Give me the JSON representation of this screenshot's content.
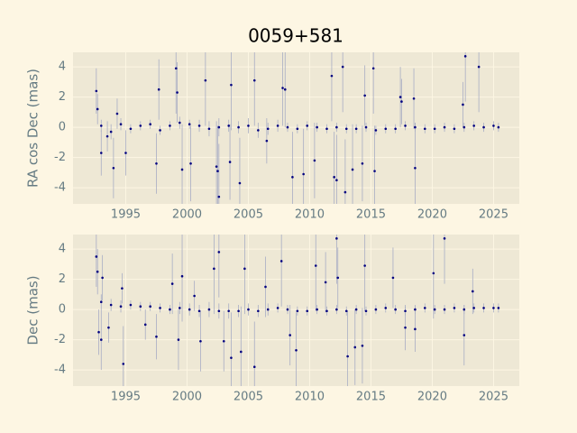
{
  "chart_data": [
    {
      "type": "scatter",
      "title": "0059+581",
      "ylabel": "RA cos Dec (mas)",
      "xlim": [
        1990.7,
        2027.1
      ],
      "ylim": [
        -5.07,
        4.96
      ],
      "xticks": [
        1995,
        2000,
        2005,
        2010,
        2015,
        2020,
        2025
      ],
      "yticks": [
        -4,
        -2,
        0,
        2,
        4
      ],
      "grid": true,
      "series": [
        {
          "color": "#000080",
          "error_color": "#a8adc4",
          "x": [
            1992.6,
            1992.7,
            1993,
            1993.5,
            1994,
            1994.3,
            1995,
            1997.7,
            1997.5,
            1999.1,
            1999.2,
            1999.6,
            2000.3,
            2001.5,
            2002.4,
            2002.5,
            2002.6,
            2003.6,
            2003.5,
            2004.3,
            2005.5,
            2006.5,
            2007.8,
            2008,
            2008.6,
            2009.5,
            2010.4,
            2011.8,
            2012,
            2012.2,
            2012.7,
            2012.9,
            2013.5,
            2014.3,
            2014.5,
            2015.2,
            2015.3,
            2017.4,
            2017.5,
            2018.5,
            2018.6,
            2022.7,
            2023.8,
            2022.5,
            1993,
            1993.8,
            1994.6,
            1995.4,
            1996.2,
            1997,
            1997.8,
            1998.6,
            1999.4,
            2000.2,
            2001,
            2001.8,
            2002.6,
            2003.4,
            2004.2,
            2005,
            2005.8,
            2006.6,
            2007.4,
            2008.2,
            2009,
            2009.8,
            2010.6,
            2011.4,
            2012.2,
            2013,
            2013.8,
            2014.6,
            2015.4,
            2016.2,
            2017,
            2017.8,
            2018.6,
            2019.4,
            2020.2,
            2021,
            2021.8,
            2022.6,
            2023.4,
            2024.2,
            2025,
            2025.4
          ],
          "values": [
            2.4,
            1.2,
            -1.7,
            -0.6,
            -2.7,
            0.9,
            -1.7,
            2.5,
            -2.4,
            3.9,
            2.3,
            -2.8,
            -2.4,
            3.1,
            -2.6,
            -2.9,
            -4.6,
            2.8,
            -2.3,
            -3.7,
            3.1,
            -0.9,
            2.6,
            2.5,
            -3.3,
            -3.1,
            -2.2,
            3.4,
            -3.3,
            -3.5,
            4.0,
            -4.3,
            -2.8,
            -2.4,
            2.1,
            3.9,
            -2.9,
            2.0,
            1.7,
            1.9,
            -2.7,
            4.7,
            4.0,
            1.5,
            0.1,
            -0.3,
            0.2,
            -0.1,
            0.1,
            0.2,
            -0.2,
            0.1,
            0.3,
            0.2,
            0.1,
            -0.1,
            0.0,
            0.1,
            0.0,
            0.1,
            -0.2,
            -0.1,
            0.1,
            0.0,
            -0.1,
            0.1,
            0.0,
            -0.1,
            0.0,
            -0.1,
            -0.1,
            0.0,
            -0.2,
            -0.1,
            -0.1,
            0.1,
            0.0,
            -0.1,
            -0.1,
            0.0,
            -0.1,
            0.0,
            0.1,
            0.0,
            0.1,
            0.0
          ],
          "errors": [
            1.5,
            1,
            1.5,
            1,
            2,
            1,
            1.5,
            2,
            2,
            3,
            2,
            3,
            2.5,
            3,
            3,
            3,
            3.5,
            3,
            2.5,
            3,
            3,
            1.5,
            2.5,
            2.5,
            3,
            3,
            2.5,
            3,
            3,
            3,
            3,
            3.5,
            3,
            2.5,
            2,
            3,
            3,
            2,
            1.5,
            2,
            3,
            3,
            3,
            1.5,
            0.4,
            0.5,
            0.4,
            0.3,
            0.3,
            0.3,
            0.3,
            0.3,
            0.4,
            0.3,
            0.4,
            0.5,
            0.6,
            0.4,
            0.4,
            0.5,
            0.5,
            0.4,
            0.4,
            0.3,
            0.3,
            0.3,
            0.3,
            0.3,
            0.3,
            0.3,
            0.3,
            0.3,
            0.3,
            0.3,
            0.3,
            0.3,
            0.3,
            0.3,
            0.3,
            0.3,
            0.3,
            0.3,
            0.3,
            0.3,
            0.3,
            0.3
          ]
        }
      ]
    },
    {
      "type": "scatter",
      "ylabel": "Dec (mas)",
      "xlim": [
        1990.7,
        2027.1
      ],
      "ylim": [
        -5.07,
        4.96
      ],
      "xticks": [
        1995,
        2000,
        2005,
        2010,
        2015,
        2020,
        2025
      ],
      "yticks": [
        -4,
        -2,
        0,
        2,
        4
      ],
      "grid": true,
      "series": [
        {
          "color": "#000080",
          "error_color": "#a8adc4",
          "x": [
            1992.6,
            1992.7,
            1992.8,
            1993,
            1993.1,
            1993.6,
            1994.7,
            1994.8,
            1996.6,
            1997.5,
            1998.8,
            1999.3,
            1999.6,
            2000.6,
            2001.1,
            2002.2,
            2002.6,
            2003,
            2003.6,
            2004.4,
            2004.7,
            2005.5,
            2006.4,
            2007.7,
            2008.4,
            2008.9,
            2010.5,
            2011.3,
            2012.2,
            2012.3,
            2013.1,
            2013.7,
            2014.3,
            2014.5,
            2016.8,
            2017.8,
            2018.6,
            2020.1,
            2021,
            2022.6,
            2023.3,
            1993,
            1993.8,
            1994.6,
            1995.4,
            1996.2,
            1997,
            1997.8,
            1998.6,
            1999.4,
            2000.2,
            2001,
            2001.8,
            2002.6,
            2003.4,
            2004.2,
            2005,
            2005.8,
            2006.6,
            2007.4,
            2008.2,
            2009,
            2009.8,
            2010.6,
            2011.4,
            2012.2,
            2013,
            2013.8,
            2014.6,
            2015.4,
            2016.2,
            2017,
            2017.8,
            2018.6,
            2019.4,
            2020.2,
            2021,
            2021.8,
            2022.6,
            2023.4,
            2024.2,
            2025,
            2025.4
          ],
          "values": [
            3.5,
            2.5,
            -1.5,
            -2.0,
            2.1,
            -1.2,
            1.4,
            -3.6,
            -1.0,
            -1.8,
            1.7,
            -2.0,
            2.2,
            0.9,
            -2.1,
            2.7,
            3.8,
            -2.1,
            -3.2,
            -2.8,
            2.7,
            -3.8,
            1.5,
            3.2,
            -1.7,
            -2.7,
            2.9,
            1.8,
            4.7,
            2.1,
            -3.1,
            -2.5,
            -2.4,
            2.9,
            2.1,
            -1.2,
            -1.3,
            2.4,
            4.7,
            -1.7,
            1.2,
            0.5,
            0.3,
            0.2,
            0.3,
            0.2,
            0.2,
            0.1,
            0.0,
            0.1,
            0.0,
            -0.1,
            0.0,
            -0.1,
            -0.1,
            -0.1,
            0.0,
            -0.1,
            0.0,
            0.1,
            0.0,
            -0.1,
            -0.1,
            0.0,
            -0.1,
            0.0,
            -0.1,
            0.0,
            -0.1,
            0.0,
            0.1,
            0.0,
            -0.1,
            0.0,
            0.1,
            0.0,
            0.0,
            0.1,
            0.0,
            0.1,
            0.1,
            0.1,
            0.1
          ],
          "errors": [
            2,
            1.5,
            1.5,
            2,
            1.5,
            1,
            1,
            2.5,
            1,
            1.5,
            2,
            2,
            3,
            1,
            2,
            3,
            3,
            2,
            3,
            3,
            3,
            3,
            2,
            3,
            2,
            2.5,
            3,
            2,
            3,
            2,
            3,
            2.5,
            2.5,
            3,
            2,
            1.5,
            1.5,
            3,
            3,
            2,
            1.5,
            0.5,
            0.4,
            0.4,
            0.3,
            0.3,
            0.3,
            0.3,
            0.3,
            0.4,
            0.4,
            0.4,
            0.5,
            0.5,
            0.5,
            0.4,
            0.4,
            0.4,
            0.4,
            0.3,
            0.3,
            0.3,
            0.3,
            0.3,
            0.3,
            0.3,
            0.3,
            0.3,
            0.3,
            0.3,
            0.3,
            0.3,
            0.3,
            0.3,
            0.3,
            0.3,
            0.3,
            0.3,
            0.3,
            0.3,
            0.3,
            0.3,
            0.3
          ]
        }
      ]
    }
  ]
}
